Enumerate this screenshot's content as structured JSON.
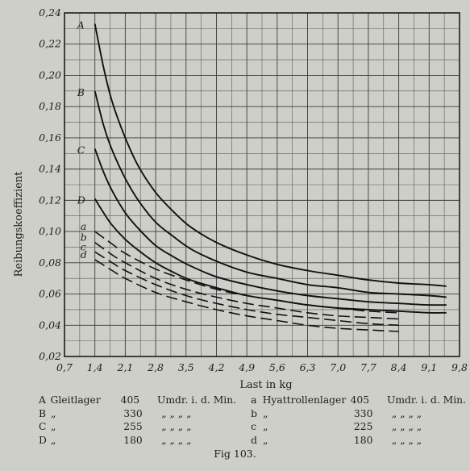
{
  "chart_data": {
    "type": "line",
    "ylabel": "Reibungskoeffizient",
    "xlabel": "Last in kg",
    "x_ticks": [
      "0,7",
      "1,4",
      "2,1",
      "2,8",
      "3,5",
      "4,2",
      "4,9",
      "5,6",
      "6,3",
      "7,0",
      "7,7",
      "8,4",
      "9,1",
      "9,8"
    ],
    "y_ticks": [
      "0,02",
      "0,04",
      "0,06",
      "0,08",
      "0,10",
      "0,12",
      "0,14",
      "0,16",
      "0,18",
      "0,20",
      "0,22",
      "0,24"
    ],
    "xlim": [
      0.7,
      9.8
    ],
    "ylim": [
      0.02,
      0.24
    ],
    "grid": true,
    "series": [
      {
        "name": "A",
        "label": "A",
        "style": "solid",
        "x": [
          1.4,
          1.6,
          1.8,
          2.1,
          2.4,
          2.8,
          3.2,
          3.6,
          4.2,
          4.9,
          5.6,
          6.3,
          7.0,
          7.7,
          8.4,
          9.1,
          9.5
        ],
        "y": [
          0.233,
          0.205,
          0.183,
          0.16,
          0.142,
          0.125,
          0.113,
          0.103,
          0.093,
          0.085,
          0.079,
          0.075,
          0.072,
          0.069,
          0.067,
          0.066,
          0.065
        ]
      },
      {
        "name": "B",
        "label": "B",
        "style": "solid",
        "x": [
          1.4,
          1.6,
          1.8,
          2.1,
          2.4,
          2.8,
          3.2,
          3.6,
          4.2,
          4.9,
          5.6,
          6.3,
          7.0,
          7.7,
          8.4,
          9.1,
          9.5
        ],
        "y": [
          0.19,
          0.168,
          0.152,
          0.134,
          0.12,
          0.106,
          0.097,
          0.089,
          0.081,
          0.074,
          0.07,
          0.066,
          0.064,
          0.061,
          0.06,
          0.059,
          0.058
        ]
      },
      {
        "name": "C",
        "label": "C",
        "style": "solid",
        "x": [
          1.4,
          1.6,
          1.8,
          2.1,
          2.4,
          2.8,
          3.2,
          3.6,
          4.2,
          4.9,
          5.6,
          6.3,
          7.0,
          7.7,
          8.4,
          9.1,
          9.5
        ],
        "y": [
          0.153,
          0.138,
          0.126,
          0.112,
          0.102,
          0.091,
          0.084,
          0.078,
          0.071,
          0.066,
          0.062,
          0.059,
          0.057,
          0.055,
          0.054,
          0.053,
          0.053
        ]
      },
      {
        "name": "D",
        "label": "D",
        "style": "solid",
        "x": [
          1.4,
          1.6,
          1.8,
          2.1,
          2.4,
          2.8,
          3.2,
          3.6,
          4.2,
          4.9,
          5.6,
          6.3,
          7.0,
          7.7,
          8.4,
          9.1,
          9.5
        ],
        "y": [
          0.121,
          0.112,
          0.104,
          0.095,
          0.088,
          0.08,
          0.074,
          0.069,
          0.064,
          0.059,
          0.056,
          0.053,
          0.051,
          0.05,
          0.049,
          0.048,
          0.048
        ]
      },
      {
        "name": "a",
        "label": "a",
        "style": "dashed",
        "x": [
          1.4,
          1.8,
          2.1,
          2.8,
          3.5,
          4.2,
          4.9,
          5.6,
          6.3,
          7.0,
          7.7,
          8.4
        ],
        "y": [
          0.1,
          0.092,
          0.086,
          0.076,
          0.069,
          0.063,
          0.059,
          0.056,
          0.053,
          0.051,
          0.049,
          0.048
        ]
      },
      {
        "name": "b",
        "label": "b",
        "style": "dashed",
        "x": [
          1.4,
          1.8,
          2.1,
          2.8,
          3.5,
          4.2,
          4.9,
          5.6,
          6.3,
          7.0,
          7.7,
          8.4
        ],
        "y": [
          0.093,
          0.085,
          0.08,
          0.07,
          0.063,
          0.058,
          0.054,
          0.051,
          0.048,
          0.046,
          0.045,
          0.044
        ]
      },
      {
        "name": "c",
        "label": "c",
        "style": "dashed",
        "x": [
          1.4,
          1.8,
          2.1,
          2.8,
          3.5,
          4.2,
          4.9,
          5.6,
          6.3,
          7.0,
          7.7,
          8.4
        ],
        "y": [
          0.087,
          0.08,
          0.075,
          0.066,
          0.059,
          0.054,
          0.05,
          0.047,
          0.045,
          0.043,
          0.041,
          0.04
        ]
      },
      {
        "name": "d",
        "label": "d",
        "style": "dashed",
        "x": [
          1.4,
          1.8,
          2.1,
          2.8,
          3.5,
          4.2,
          4.9,
          5.6,
          6.3,
          7.0,
          7.7,
          8.4
        ],
        "y": [
          0.082,
          0.075,
          0.07,
          0.061,
          0.055,
          0.05,
          0.046,
          0.043,
          0.04,
          0.038,
          0.037,
          0.036
        ]
      }
    ]
  },
  "legend": {
    "rows": [
      {
        "k1": "A",
        "n1": "Gleitlager",
        "r1": "405",
        "u1": "Umdr. i. d. Min.",
        "k2": "a",
        "n2": "Hyattrollenlager",
        "r2": "405",
        "u2": "Umdr. i. d. Min."
      },
      {
        "k1": "B",
        "n1": "„",
        "r1": "330",
        "u1": "„ „ „ „",
        "k2": "b",
        "n2": "„",
        "r2": "330",
        "u2": "„ „ „ „"
      },
      {
        "k1": "C",
        "n1": "„",
        "r1": "255",
        "u1": "„ „ „ „",
        "k2": "c",
        "n2": "„",
        "r2": "225",
        "u2": "„ „ „ „"
      },
      {
        "k1": "D",
        "n1": "„",
        "r1": "180",
        "u1": "„ „ „ „",
        "k2": "d",
        "n2": "„",
        "r2": "180",
        "u2": "„ „ „ „"
      }
    ]
  },
  "caption": "Fig 103."
}
